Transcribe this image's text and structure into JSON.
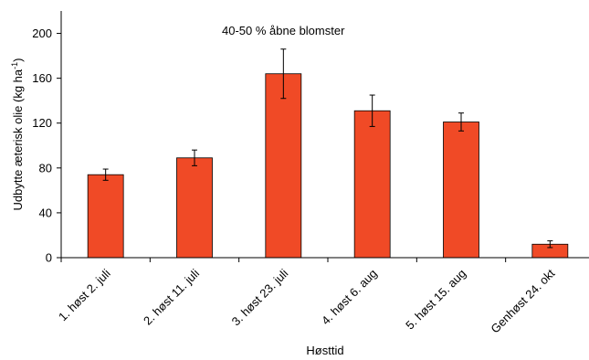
{
  "chart_data": {
    "type": "bar",
    "title": "",
    "annotation": "40-50 % åbne blomster",
    "xlabel": "Høsttid",
    "ylabel": {
      "main": "Udbytte æterisk olie (kg ha",
      "superscript": "-1",
      "close": ")"
    },
    "ylim": [
      0,
      220
    ],
    "yticks": [
      "0",
      "40",
      "80",
      "120",
      "160",
      "200"
    ],
    "grid": false,
    "legend": "none",
    "bar_color": "#f04a26",
    "categories": [
      "1. høst 2. juli",
      "2. høst 11. juli",
      "3. høst 23. juli",
      "4. høst 6. aug",
      "5. høst 15. aug",
      "Genhøst 24. okt"
    ],
    "values": [
      74,
      89,
      164,
      131,
      121,
      12
    ],
    "errors": [
      5,
      7,
      22,
      14,
      8,
      3
    ]
  }
}
